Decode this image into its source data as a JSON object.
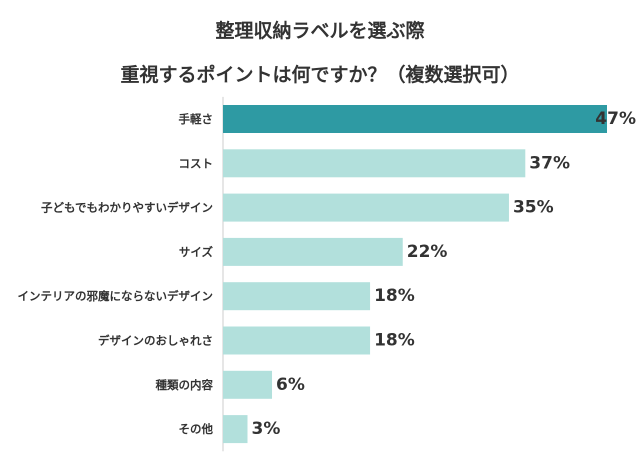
{
  "chart_data": {
    "type": "bar",
    "orientation": "horizontal",
    "title_lines": [
      "整理収納ラベルを選ぶ際",
      "重視するポイントは何ですか？（複数選択可）"
    ],
    "categories": [
      "手軽さ",
      "コスト",
      "子どもでもわかりやすいデザイン",
      "サイズ",
      "インテリアの邪魔にならないデザイン",
      "デザインのおしゃれさ",
      "種類の内容",
      "その他"
    ],
    "values": [
      47,
      37,
      35,
      22,
      18,
      18,
      6,
      3
    ],
    "value_labels": [
      "47%",
      "37%",
      "35%",
      "22%",
      "18%",
      "18%",
      "6%",
      "3%"
    ],
    "unit": "%",
    "xlim": [
      0,
      47
    ],
    "grid": false,
    "legend": "none",
    "highlight_index": 0,
    "colors": {
      "highlight": "#2e9aa3",
      "bar": "#b2e0dc",
      "text": "#333333",
      "axis": "#cccccc"
    }
  }
}
